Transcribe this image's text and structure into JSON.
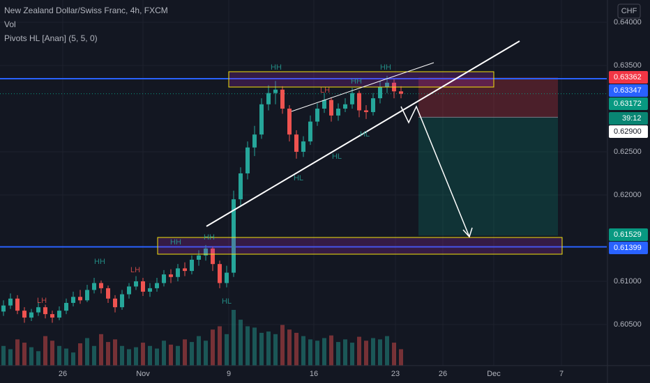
{
  "chart_data": {
    "type": "candlestick",
    "title": "New Zealand Dollar/Swiss Franc, 4h, FXCM",
    "indicators": [
      "Vol",
      "Pivots HL [Anan] (5, 5, 0)"
    ],
    "currency": "CHF",
    "up_color": "#26a69a",
    "down_color": "#ef5350",
    "xlim": [
      -0.5,
      86.5
    ],
    "xticks": [
      {
        "value": 8.5,
        "label": "26"
      },
      {
        "value": 20,
        "label": "Nov"
      },
      {
        "value": 32.3,
        "label": "9"
      },
      {
        "value": 44.5,
        "label": "16"
      },
      {
        "value": 56.2,
        "label": "23"
      },
      {
        "value": 63,
        "label": "26"
      },
      {
        "value": 70.3,
        "label": "Dec"
      },
      {
        "value": 80,
        "label": "7"
      }
    ],
    "ylim": [
      0.60024,
      0.64258
    ],
    "yticks": [
      {
        "value": 0.64,
        "label": "0.64000"
      },
      {
        "value": 0.635,
        "label": "0.63500"
      },
      {
        "value": 0.625,
        "label": "0.62500"
      },
      {
        "value": 0.62,
        "label": "0.62000"
      },
      {
        "value": 0.61,
        "label": "0.61000"
      },
      {
        "value": 0.605,
        "label": "0.60500"
      }
    ],
    "grid": true,
    "ohlc": [
      [
        0.6065,
        0.6078,
        0.606,
        0.6072
      ],
      [
        0.6072,
        0.6086,
        0.6068,
        0.608
      ],
      [
        0.608,
        0.6084,
        0.6062,
        0.6066
      ],
      [
        0.6066,
        0.607,
        0.6052,
        0.6058
      ],
      [
        0.6058,
        0.6068,
        0.6054,
        0.6064
      ],
      [
        0.6064,
        0.6076,
        0.606,
        0.607
      ],
      [
        0.607,
        0.6073,
        0.6057,
        0.6062
      ],
      [
        0.6062,
        0.6066,
        0.6052,
        0.6058
      ],
      [
        0.6058,
        0.6071,
        0.6055,
        0.6066
      ],
      [
        0.6066,
        0.608,
        0.6062,
        0.6075
      ],
      [
        0.6075,
        0.6088,
        0.6071,
        0.6082
      ],
      [
        0.6082,
        0.609,
        0.6074,
        0.6078
      ],
      [
        0.6078,
        0.6096,
        0.6076,
        0.609
      ],
      [
        0.609,
        0.6104,
        0.6086,
        0.6098
      ],
      [
        0.6098,
        0.6101,
        0.6086,
        0.6092
      ],
      [
        0.6092,
        0.6095,
        0.6075,
        0.608
      ],
      [
        0.608,
        0.6084,
        0.6064,
        0.607
      ],
      [
        0.607,
        0.609,
        0.6067,
        0.6085
      ],
      [
        0.6085,
        0.6098,
        0.608,
        0.6094
      ],
      [
        0.6094,
        0.6106,
        0.609,
        0.61
      ],
      [
        0.61,
        0.6104,
        0.6083,
        0.6088
      ],
      [
        0.6088,
        0.6098,
        0.6082,
        0.6092
      ],
      [
        0.6092,
        0.6104,
        0.6088,
        0.6098
      ],
      [
        0.6098,
        0.6113,
        0.6094,
        0.6108
      ],
      [
        0.6108,
        0.6114,
        0.6098,
        0.6105
      ],
      [
        0.6105,
        0.612,
        0.61,
        0.6115
      ],
      [
        0.6115,
        0.6122,
        0.6106,
        0.6112
      ],
      [
        0.6112,
        0.613,
        0.6108,
        0.6125
      ],
      [
        0.6125,
        0.6136,
        0.6118,
        0.613
      ],
      [
        0.613,
        0.6142,
        0.6124,
        0.6138
      ],
      [
        0.6138,
        0.614,
        0.6112,
        0.612
      ],
      [
        0.612,
        0.6124,
        0.6092,
        0.6098
      ],
      [
        0.6098,
        0.6118,
        0.6093,
        0.611
      ],
      [
        0.611,
        0.6205,
        0.6105,
        0.6195
      ],
      [
        0.6195,
        0.6232,
        0.6188,
        0.6225
      ],
      [
        0.6225,
        0.6262,
        0.6218,
        0.6255
      ],
      [
        0.6255,
        0.628,
        0.6245,
        0.627
      ],
      [
        0.627,
        0.6312,
        0.6265,
        0.6305
      ],
      [
        0.6305,
        0.6327,
        0.6298,
        0.6318
      ],
      [
        0.6318,
        0.6332,
        0.6305,
        0.6322
      ],
      [
        0.6322,
        0.6326,
        0.6294,
        0.63
      ],
      [
        0.63,
        0.6304,
        0.6262,
        0.627
      ],
      [
        0.627,
        0.6275,
        0.6242,
        0.625
      ],
      [
        0.625,
        0.6268,
        0.6244,
        0.6262
      ],
      [
        0.6262,
        0.6292,
        0.6258,
        0.6285
      ],
      [
        0.6285,
        0.6306,
        0.628,
        0.63
      ],
      [
        0.63,
        0.6318,
        0.6295,
        0.631
      ],
      [
        0.631,
        0.6313,
        0.6285,
        0.6292
      ],
      [
        0.6292,
        0.6306,
        0.6286,
        0.63
      ],
      [
        0.63,
        0.6312,
        0.6296,
        0.6305
      ],
      [
        0.6305,
        0.6324,
        0.63,
        0.6318
      ],
      [
        0.6318,
        0.6321,
        0.629,
        0.6298
      ],
      [
        0.6298,
        0.6304,
        0.6288,
        0.6296
      ],
      [
        0.6296,
        0.6318,
        0.6292,
        0.6312
      ],
      [
        0.6312,
        0.6332,
        0.6306,
        0.6325
      ],
      [
        0.6325,
        0.6338,
        0.6318,
        0.633
      ],
      [
        0.633,
        0.6334,
        0.6312,
        0.632
      ],
      [
        0.632,
        0.6326,
        0.6312,
        0.63172
      ]
    ],
    "volume": [
      30,
      25,
      40,
      35,
      28,
      22,
      45,
      38,
      30,
      26,
      20,
      34,
      42,
      30,
      48,
      36,
      40,
      30,
      25,
      28,
      35,
      30,
      26,
      38,
      32,
      30,
      40,
      36,
      45,
      38,
      55,
      60,
      48,
      85,
      70,
      60,
      58,
      50,
      52,
      48,
      62,
      55,
      50,
      45,
      40,
      38,
      42,
      46,
      36,
      40,
      35,
      44,
      38,
      42,
      40,
      45,
      35,
      25
    ],
    "price_labels": [
      {
        "value": 0.63362,
        "label": "0.63362",
        "color": "#f23645"
      },
      {
        "value": 0.63347,
        "label": "0.63347",
        "color": "#2962ff"
      },
      {
        "value": 0.63172,
        "label": "0.63172",
        "color": "#089981"
      },
      {
        "value": 0.629,
        "label": "0.62900",
        "color": "#ffffff"
      },
      {
        "value": 0.61529,
        "label": "0.61529",
        "color": "#089981"
      },
      {
        "value": 0.61399,
        "label": "0.61399",
        "color": "#2962ff"
      }
    ],
    "countdown": "39:12",
    "annotations": [
      "HH",
      "HH",
      "LH",
      "HH",
      "HL",
      "HL",
      "HL",
      "HH",
      "HH",
      "HH",
      "LH",
      "LH",
      "HL"
    ]
  }
}
